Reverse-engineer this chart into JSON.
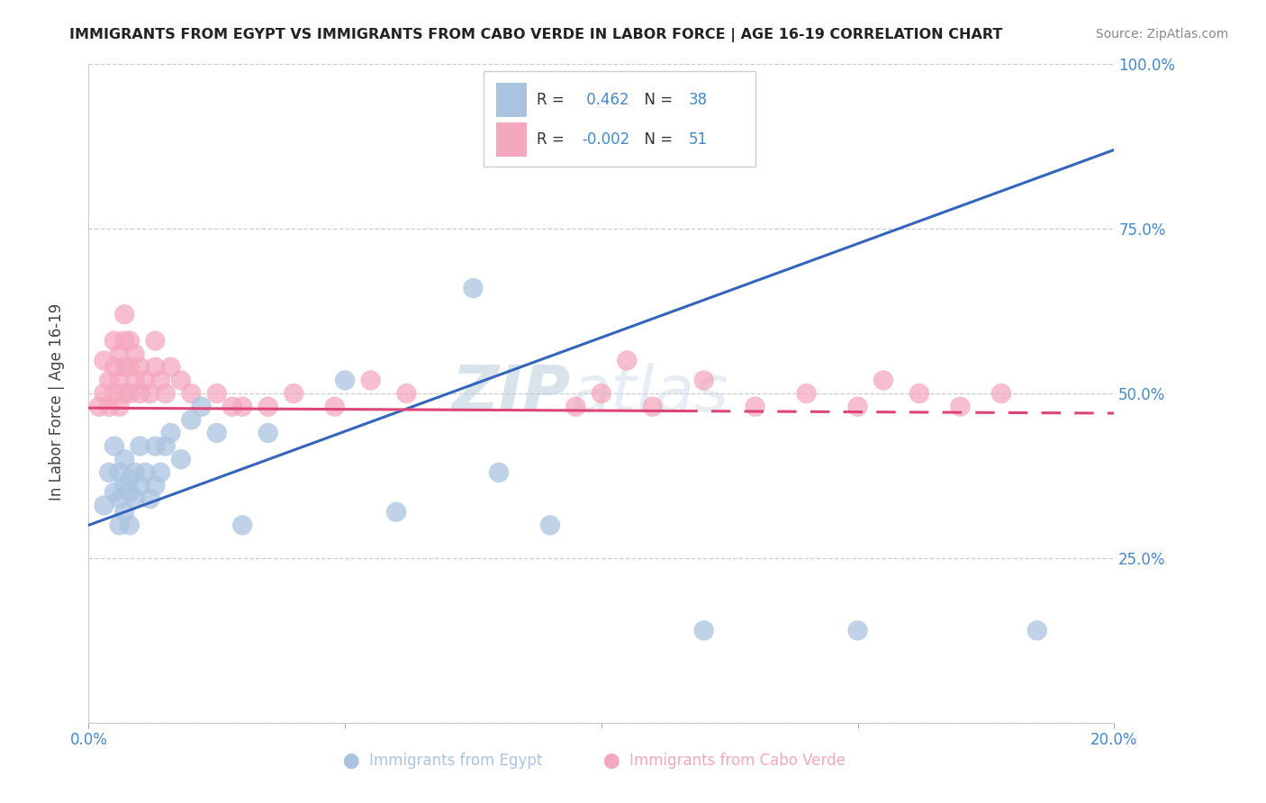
{
  "title": "IMMIGRANTS FROM EGYPT VS IMMIGRANTS FROM CABO VERDE IN LABOR FORCE | AGE 16-19 CORRELATION CHART",
  "source": "Source: ZipAtlas.com",
  "ylabel": "In Labor Force | Age 16-19",
  "xlim": [
    0.0,
    0.2
  ],
  "ylim": [
    0.0,
    1.0
  ],
  "egypt_R": 0.462,
  "egypt_N": 38,
  "caboverde_R": -0.002,
  "caboverde_N": 51,
  "egypt_color": "#aac4e0",
  "caboverde_color": "#f4a8be",
  "egypt_line_color": "#3366bb",
  "caboverde_line_color": "#dd4477",
  "watermark_zip": "ZIP",
  "watermark_atlas": "atlas",
  "egypt_x": [
    0.003,
    0.004,
    0.005,
    0.005,
    0.006,
    0.006,
    0.006,
    0.007,
    0.007,
    0.007,
    0.008,
    0.008,
    0.008,
    0.009,
    0.009,
    0.01,
    0.01,
    0.011,
    0.012,
    0.013,
    0.013,
    0.014,
    0.015,
    0.016,
    0.018,
    0.02,
    0.022,
    0.025,
    0.03,
    0.035,
    0.05,
    0.06,
    0.075,
    0.08,
    0.09,
    0.12,
    0.15,
    0.185
  ],
  "egypt_y": [
    0.33,
    0.38,
    0.35,
    0.42,
    0.3,
    0.34,
    0.38,
    0.36,
    0.32,
    0.4,
    0.35,
    0.3,
    0.37,
    0.34,
    0.38,
    0.36,
    0.42,
    0.38,
    0.34,
    0.36,
    0.42,
    0.38,
    0.42,
    0.44,
    0.4,
    0.46,
    0.48,
    0.44,
    0.3,
    0.44,
    0.52,
    0.32,
    0.66,
    0.38,
    0.3,
    0.14,
    0.14,
    0.14
  ],
  "caboverde_x": [
    0.002,
    0.003,
    0.003,
    0.004,
    0.004,
    0.005,
    0.005,
    0.005,
    0.006,
    0.006,
    0.006,
    0.007,
    0.007,
    0.007,
    0.007,
    0.008,
    0.008,
    0.008,
    0.009,
    0.009,
    0.01,
    0.01,
    0.011,
    0.012,
    0.013,
    0.013,
    0.014,
    0.015,
    0.016,
    0.018,
    0.02,
    0.025,
    0.028,
    0.03,
    0.035,
    0.04,
    0.048,
    0.055,
    0.062,
    0.095,
    0.1,
    0.105,
    0.11,
    0.12,
    0.13,
    0.14,
    0.15,
    0.155,
    0.162,
    0.17,
    0.178
  ],
  "caboverde_y": [
    0.48,
    0.5,
    0.55,
    0.48,
    0.52,
    0.5,
    0.54,
    0.58,
    0.48,
    0.52,
    0.56,
    0.5,
    0.54,
    0.58,
    0.62,
    0.5,
    0.54,
    0.58,
    0.52,
    0.56,
    0.5,
    0.54,
    0.52,
    0.5,
    0.54,
    0.58,
    0.52,
    0.5,
    0.54,
    0.52,
    0.5,
    0.5,
    0.48,
    0.48,
    0.48,
    0.5,
    0.48,
    0.52,
    0.5,
    0.48,
    0.5,
    0.55,
    0.48,
    0.52,
    0.48,
    0.5,
    0.48,
    0.52,
    0.5,
    0.48,
    0.5
  ],
  "egypt_line_x0": 0.0,
  "egypt_line_y0": 0.3,
  "egypt_line_x1": 0.2,
  "egypt_line_y1": 0.87,
  "caboverde_line_x0": 0.0,
  "caboverde_line_y0": 0.478,
  "caboverde_line_x1": 0.2,
  "caboverde_line_y1": 0.47
}
